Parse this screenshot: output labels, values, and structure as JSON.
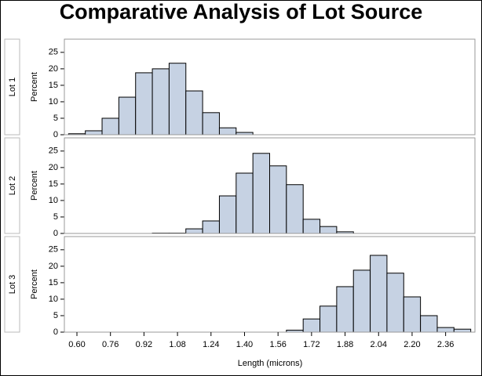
{
  "chart_data": {
    "type": "histogram",
    "title": "Comparative Analysis of Lot Source",
    "x_label": "Length (microns)",
    "y_label": "Percent",
    "color": "#c6d2e3",
    "bins": [
      0.56,
      0.64,
      0.72,
      0.8,
      0.88,
      0.96,
      1.04,
      1.12,
      1.2,
      1.28,
      1.36,
      1.44,
      1.52,
      1.6,
      1.68,
      1.76,
      1.84,
      1.92,
      2.0,
      2.08,
      2.16,
      2.24,
      2.32,
      2.4,
      2.48
    ],
    "series": [
      {
        "name": "Lot 1",
        "values": [
          0.3,
          1.2,
          5,
          11.4,
          18.8,
          20,
          21.7,
          13.3,
          6.7,
          2.1,
          0.7,
          0,
          0,
          0,
          0,
          0,
          0,
          0,
          0,
          0,
          0,
          0,
          0,
          0
        ]
      },
      {
        "name": "Lot 2",
        "values": [
          0,
          0,
          0,
          0,
          0,
          0.1,
          0.1,
          1.4,
          3.8,
          11.4,
          18.3,
          24.3,
          20.5,
          14.8,
          4.3,
          2.1,
          0.5,
          0,
          0,
          0,
          0,
          0,
          0,
          0
        ]
      },
      {
        "name": "Lot 3",
        "values": [
          0,
          0,
          0,
          0,
          0,
          0,
          0,
          0,
          0,
          0,
          0,
          0,
          0,
          0.6,
          4,
          7.9,
          13.8,
          18.8,
          23.3,
          17.9,
          10.7,
          5,
          1.4,
          0.9
        ]
      }
    ],
    "xlim": [
      0.54,
      2.5
    ],
    "xticks": [
      {
        "value": 0.6,
        "label": "0.60"
      },
      0.76,
      0.92,
      1.08,
      1.24,
      {
        "value": 1.4,
        "label": "1.40"
      },
      1.56,
      1.72,
      1.88,
      2.04,
      {
        "value": 2.2,
        "label": "2.20"
      },
      2.36
    ],
    "ylim": [
      0,
      29
    ],
    "yticks": [
      0,
      5,
      10,
      15,
      20,
      25
    ]
  }
}
